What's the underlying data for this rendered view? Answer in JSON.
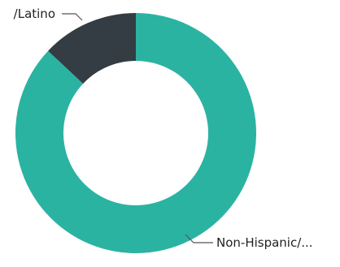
{
  "chart_data": {
    "type": "pie",
    "style": "donut",
    "slices": [
      {
        "label": "Non-Hispanic/...",
        "value": 87,
        "color": "#2bb3a1"
      },
      {
        "label": "/Latino",
        "value": 13,
        "color": "#333d43"
      }
    ],
    "legend": "none"
  }
}
